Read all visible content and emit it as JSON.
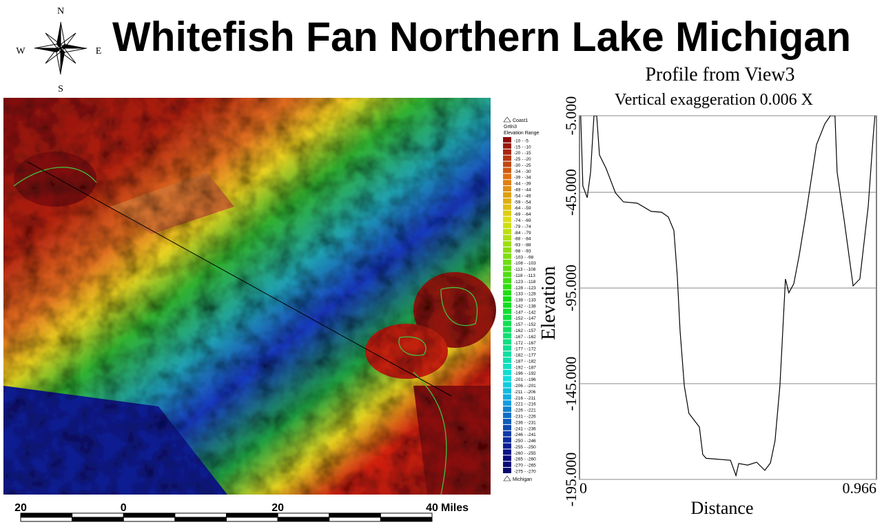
{
  "title": "Whitefish Fan Northern Lake Michigan",
  "compass": {
    "n": "N",
    "s": "S",
    "e": "E",
    "w": "W"
  },
  "map": {
    "legend": {
      "layers": [
        "Coast1",
        "Grtln3"
      ],
      "heading": "Elevation Range",
      "ranges": [
        "-10 - -5",
        "-15 - -10",
        "-20 - -15",
        "-25 - -20",
        "-30 - -25",
        "-34 - -30",
        "-39 - -34",
        "-44 - -39",
        "-49 - -44",
        "-54 - -49",
        "-59 - -54",
        "-64 - -59",
        "-69 - -64",
        "-74 - -69",
        "-79 - -74",
        "-84 - -79",
        "-88 - -84",
        "-93 - -88",
        "-98 - -93",
        "-103 - -98",
        "-108 - -103",
        "-113 - -108",
        "-118 - -113",
        "-123 - -118",
        "-128 - -123",
        "-133 - -128",
        "-138 - -133",
        "-142 - -138",
        "-147 - -142",
        "-152 - -147",
        "-157 - -152",
        "-162 - -157",
        "-167 - -162",
        "-172 - -167",
        "-177 - -172",
        "-182 - -177",
        "-187 - -182",
        "-192 - -187",
        "-196 - -192",
        "-201 - -196",
        "-206 - -201",
        "-211 - -206",
        "-216 - -211",
        "-221 - -216",
        "-226 - -221",
        "-231 - -226",
        "-236 - -231",
        "-241 - -236",
        "-246 - -241",
        "-250 - -246",
        "-255 - -250",
        "-260 - -255",
        "-265 - -260",
        "-270 - -265",
        "-275 - -270"
      ],
      "footer": "Michigan"
    },
    "scale_bar": {
      "labels": [
        "20",
        "0",
        "20",
        "40"
      ],
      "unit": "Miles"
    }
  },
  "chart_data": {
    "type": "line",
    "title": "Profile from View3",
    "subtitle": "Vertical exaggeration 0.006 X",
    "x_label": "Distance",
    "y_label": "Elevation",
    "color": "#000000",
    "x": [
      0.004,
      0.011,
      0.025,
      0.036,
      0.047,
      0.056,
      0.065,
      0.087,
      0.117,
      0.143,
      0.188,
      0.233,
      0.267,
      0.289,
      0.307,
      0.318,
      0.327,
      0.341,
      0.356,
      0.39,
      0.401,
      0.412,
      0.491,
      0.509,
      0.518,
      0.547,
      0.576,
      0.603,
      0.621,
      0.636,
      0.652,
      0.659,
      0.67,
      0.681,
      0.697,
      0.715,
      0.737,
      0.771,
      0.798,
      0.816,
      0.831,
      0.838,
      0.861,
      0.89,
      0.912,
      0.939,
      0.955,
      0.961
    ],
    "values": [
      -5,
      -41.7,
      -47.8,
      -34.5,
      -5,
      -5,
      -25.5,
      -32.7,
      -45.3,
      -50,
      -50.7,
      -55,
      -55.4,
      -57.9,
      -65,
      -88.5,
      -117,
      -146,
      -160.5,
      -167.6,
      -182,
      -184,
      -185,
      -193,
      -186.7,
      -187.5,
      -186,
      -190.3,
      -186.4,
      -174.8,
      -146,
      -124.5,
      -90.3,
      -97.5,
      -92.8,
      -77.7,
      -56.1,
      -20.1,
      -9.3,
      -5,
      -5,
      -34.5,
      -59.7,
      -93.9,
      -90.3,
      -52.5,
      -16.5,
      -5
    ],
    "xlim": [
      0,
      0.966
    ],
    "xticks": [
      0,
      0.966
    ],
    "ylim": [
      -195,
      -5
    ],
    "yticks": [
      {
        "value": -5,
        "label": "-5.000"
      },
      {
        "value": -45,
        "label": "-45.000"
      },
      {
        "value": -95,
        "label": "-95.000"
      },
      {
        "value": -145,
        "label": "-145.000"
      },
      {
        "value": -195,
        "label": "-195.000"
      }
    ],
    "grid": true
  }
}
